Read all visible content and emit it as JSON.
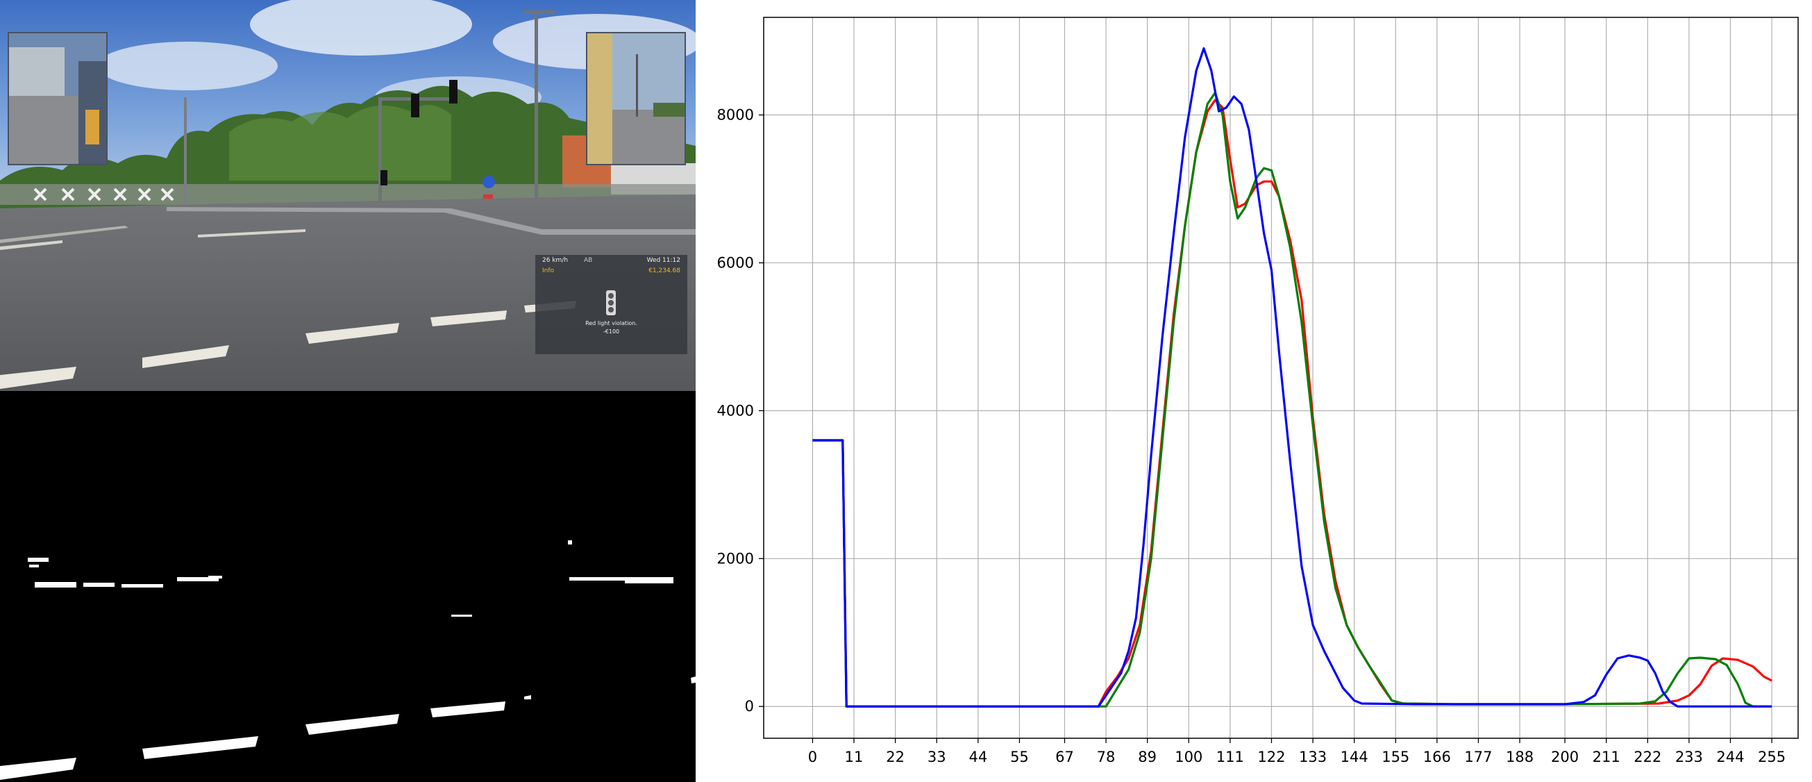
{
  "hud": {
    "speed": "26 km/h",
    "status_icons": "AB",
    "day_time": "Wed 11:12",
    "info_label": "Info",
    "money": "€1,234.68",
    "violation_text": "Red light violation.",
    "fine": "-€100",
    "accent_color": "#f5b428"
  },
  "colors": {
    "red_series": "#ff0000",
    "green_series": "#008000",
    "blue_series": "#0000ff"
  },
  "chart_data": {
    "type": "line",
    "title": "",
    "xlabel": "",
    "ylabel": "",
    "xlim": [
      -13,
      262
    ],
    "ylim": [
      -430,
      9320
    ],
    "grid": true,
    "x_ticks": [
      0,
      11,
      22,
      33,
      44,
      55,
      67,
      78,
      89,
      100,
      111,
      122,
      133,
      144,
      155,
      166,
      177,
      188,
      200,
      211,
      222,
      233,
      244,
      255
    ],
    "y_ticks": [
      0,
      2000,
      4000,
      6000,
      8000
    ],
    "series": [
      {
        "color": "red",
        "points": [
          [
            0,
            3600
          ],
          [
            8,
            3600
          ],
          [
            9,
            0
          ],
          [
            76,
            0
          ],
          [
            78,
            200
          ],
          [
            81,
            400
          ],
          [
            84,
            650
          ],
          [
            87,
            1100
          ],
          [
            90,
            2100
          ],
          [
            93,
            3700
          ],
          [
            96,
            5300
          ],
          [
            99,
            6500
          ],
          [
            102,
            7500
          ],
          [
            105,
            8050
          ],
          [
            107,
            8200
          ],
          [
            109,
            8100
          ],
          [
            111,
            7400
          ],
          [
            113,
            6750
          ],
          [
            115,
            6800
          ],
          [
            118,
            7050
          ],
          [
            120,
            7100
          ],
          [
            122,
            7100
          ],
          [
            124,
            6900
          ],
          [
            127,
            6300
          ],
          [
            130,
            5500
          ],
          [
            133,
            3900
          ],
          [
            136,
            2600
          ],
          [
            139,
            1700
          ],
          [
            142,
            1100
          ],
          [
            145,
            800
          ],
          [
            148,
            550
          ],
          [
            151,
            300
          ],
          [
            154,
            80
          ],
          [
            157,
            40
          ],
          [
            170,
            30
          ],
          [
            200,
            30
          ],
          [
            225,
            40
          ],
          [
            230,
            80
          ],
          [
            233,
            150
          ],
          [
            236,
            300
          ],
          [
            239,
            550
          ],
          [
            242,
            650
          ],
          [
            246,
            630
          ],
          [
            250,
            540
          ],
          [
            253,
            400
          ],
          [
            255,
            350
          ]
        ]
      },
      {
        "color": "green",
        "points": [
          [
            0,
            3600
          ],
          [
            8,
            3600
          ],
          [
            9,
            0
          ],
          [
            78,
            0
          ],
          [
            81,
            250
          ],
          [
            84,
            500
          ],
          [
            87,
            1000
          ],
          [
            90,
            2000
          ],
          [
            93,
            3600
          ],
          [
            96,
            5200
          ],
          [
            99,
            6500
          ],
          [
            102,
            7500
          ],
          [
            105,
            8150
          ],
          [
            107,
            8300
          ],
          [
            109,
            8000
          ],
          [
            111,
            7100
          ],
          [
            113,
            6600
          ],
          [
            115,
            6750
          ],
          [
            118,
            7150
          ],
          [
            120,
            7280
          ],
          [
            122,
            7250
          ],
          [
            124,
            6900
          ],
          [
            127,
            6200
          ],
          [
            130,
            5200
          ],
          [
            133,
            3800
          ],
          [
            136,
            2500
          ],
          [
            139,
            1600
          ],
          [
            142,
            1100
          ],
          [
            145,
            800
          ],
          [
            148,
            550
          ],
          [
            151,
            320
          ],
          [
            154,
            80
          ],
          [
            157,
            40
          ],
          [
            170,
            30
          ],
          [
            200,
            30
          ],
          [
            220,
            40
          ],
          [
            224,
            70
          ],
          [
            227,
            200
          ],
          [
            230,
            450
          ],
          [
            233,
            650
          ],
          [
            236,
            660
          ],
          [
            240,
            640
          ],
          [
            243,
            560
          ],
          [
            246,
            300
          ],
          [
            248,
            50
          ],
          [
            250,
            0
          ],
          [
            255,
            0
          ]
        ]
      },
      {
        "color": "blue",
        "points": [
          [
            0,
            3600
          ],
          [
            8,
            3600
          ],
          [
            9,
            0
          ],
          [
            76,
            0
          ],
          [
            78,
            150
          ],
          [
            80,
            300
          ],
          [
            82,
            450
          ],
          [
            84,
            750
          ],
          [
            86,
            1200
          ],
          [
            88,
            2200
          ],
          [
            90,
            3400
          ],
          [
            93,
            5000
          ],
          [
            96,
            6400
          ],
          [
            99,
            7700
          ],
          [
            102,
            8600
          ],
          [
            104,
            8900
          ],
          [
            106,
            8600
          ],
          [
            108,
            8050
          ],
          [
            110,
            8100
          ],
          [
            112,
            8250
          ],
          [
            114,
            8150
          ],
          [
            116,
            7800
          ],
          [
            118,
            7100
          ],
          [
            120,
            6400
          ],
          [
            122,
            5900
          ],
          [
            124,
            4800
          ],
          [
            127,
            3300
          ],
          [
            130,
            1900
          ],
          [
            133,
            1100
          ],
          [
            136,
            750
          ],
          [
            139,
            450
          ],
          [
            141,
            250
          ],
          [
            144,
            80
          ],
          [
            146,
            40
          ],
          [
            160,
            30
          ],
          [
            200,
            30
          ],
          [
            205,
            60
          ],
          [
            208,
            150
          ],
          [
            211,
            430
          ],
          [
            214,
            650
          ],
          [
            217,
            690
          ],
          [
            220,
            660
          ],
          [
            222,
            620
          ],
          [
            224,
            450
          ],
          [
            226,
            200
          ],
          [
            228,
            60
          ],
          [
            230,
            0
          ],
          [
            255,
            0
          ]
        ]
      }
    ]
  }
}
